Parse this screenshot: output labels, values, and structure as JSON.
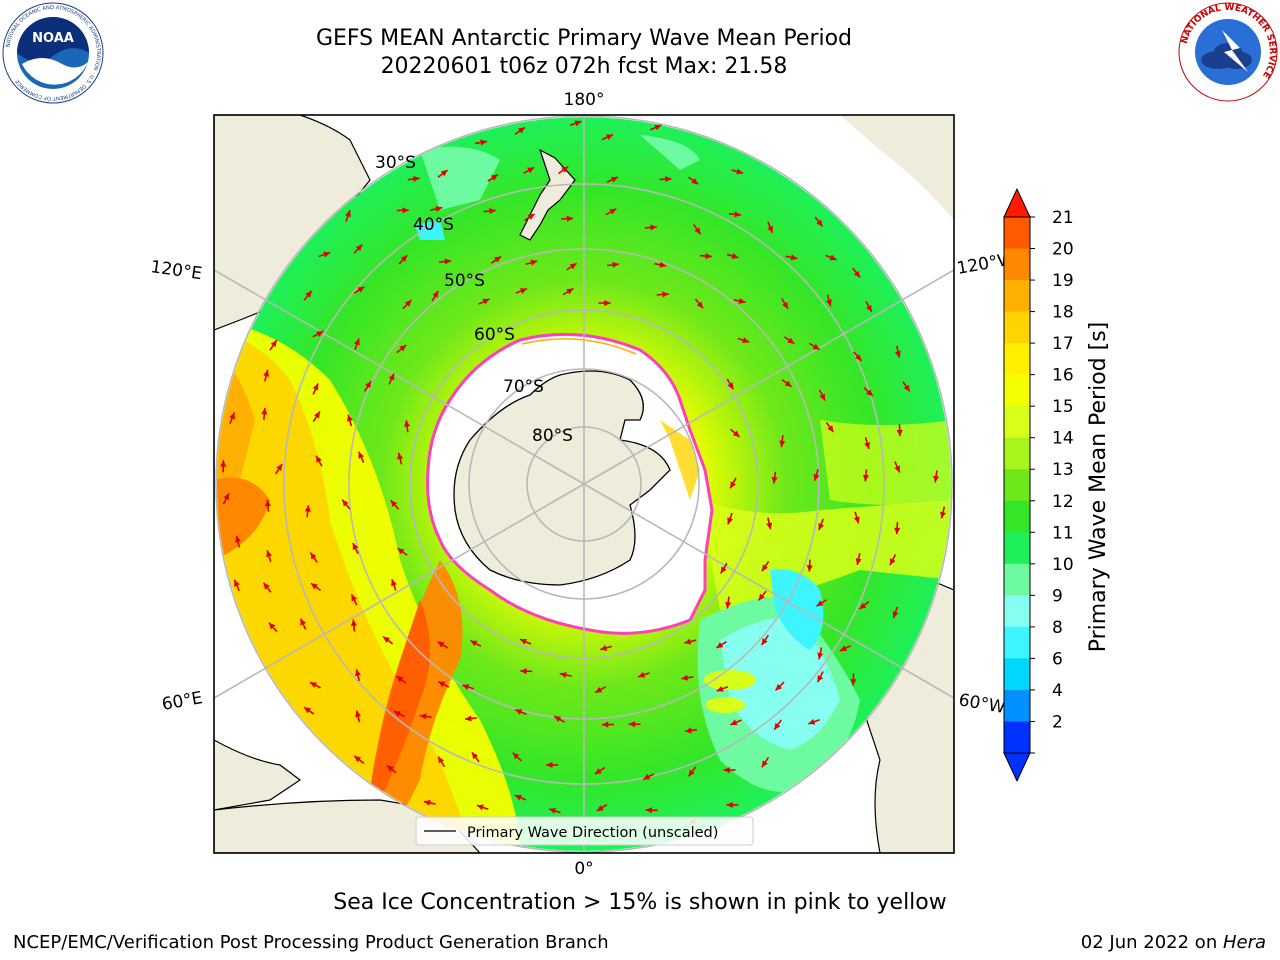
{
  "title": {
    "line1": "GEFS MEAN Antarctic Primary Wave Mean Period",
    "line2": "20220601 t06z 072h fcst   Max: 21.58"
  },
  "logos": {
    "left": {
      "name": "noaa-logo",
      "text": "NOAA",
      "ring": "NATIONAL OCEANIC AND ATMOSPHERIC ADMINISTRATION · U.S. DEPARTMENT OF COMMERCE"
    },
    "right": {
      "name": "nws-logo",
      "ring": "NATIONAL WEATHER SERVICE"
    }
  },
  "map": {
    "projection": "south polar stereographic",
    "longitude_labels": [
      "180°",
      "120°E",
      "120°W",
      "60°E",
      "60°W",
      "0°"
    ],
    "latitude_labels": [
      "30°S",
      "40°S",
      "50°S",
      "60°S",
      "70°S",
      "80°S"
    ],
    "legend": "Primary Wave Direction (unscaled)"
  },
  "colorbar": {
    "label": "Primary Wave Mean Period [s]",
    "ticks": [
      "21",
      "20",
      "19",
      "18",
      "17",
      "16",
      "15",
      "14",
      "13",
      "12",
      "11",
      "10",
      "9",
      "8",
      "6",
      "4",
      "2"
    ],
    "colors": [
      "#ff1a00",
      "#ff5a00",
      "#ff8800",
      "#ffb000",
      "#ffd400",
      "#fff000",
      "#f4ff00",
      "#d8ff1a",
      "#a8f51e",
      "#6fe81a",
      "#34e627",
      "#1ef05a",
      "#6dfaa0",
      "#86fff0",
      "#3cf5ff",
      "#00d8ff",
      "#0090ff",
      "#0032ff"
    ]
  },
  "caption": "Sea Ice Concentration > 15% is shown in pink to yellow",
  "footer": {
    "left": "NCEP/EMC/Verification Post Processing Product Generation Branch",
    "right_date": "02 Jun 2022 on ",
    "right_host": "Hera"
  }
}
